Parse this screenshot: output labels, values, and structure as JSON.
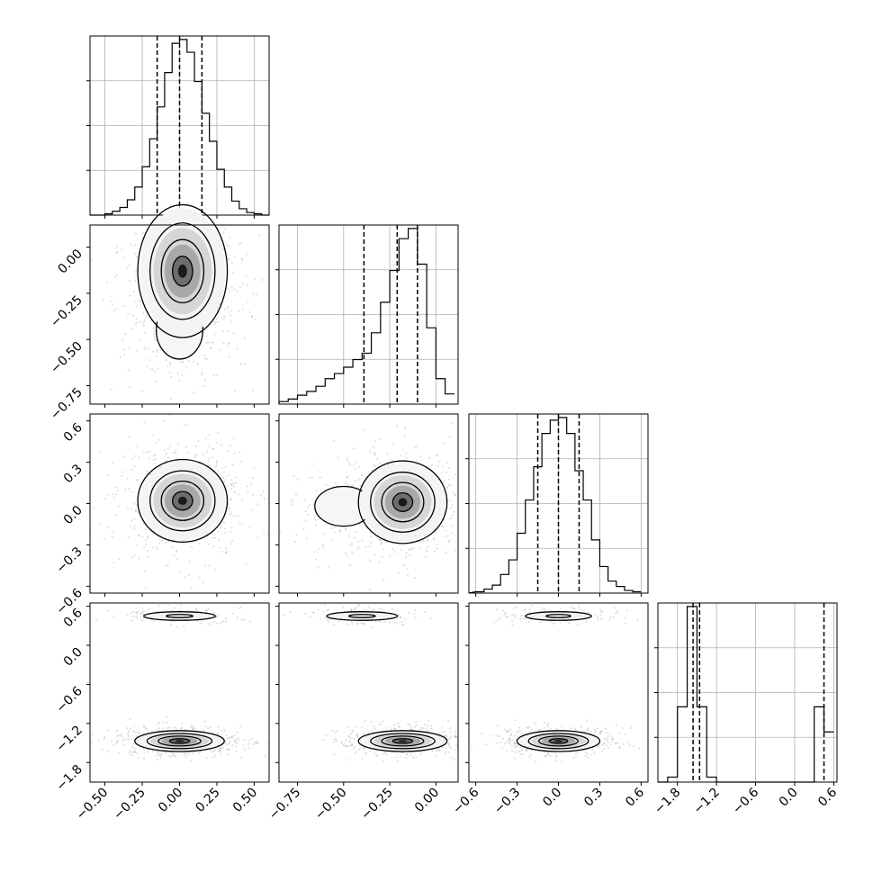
{
  "chart_data": {
    "type": "corner",
    "grid": true,
    "colors": {
      "line": "#000000",
      "grid": "#b0b0b0",
      "points": "#9a9a9a",
      "background": "#ffffff"
    },
    "parameters": [
      {
        "range": [
          -0.6,
          0.6
        ],
        "ticks": [
          -0.5,
          -0.25,
          0.0,
          0.25,
          0.5
        ],
        "tick_labels": [
          "−0.50",
          "−0.25",
          "0.00",
          "0.25",
          "0.50"
        ]
      },
      {
        "range": [
          -0.85,
          0.12
        ],
        "ticks": [
          -0.75,
          -0.5,
          -0.25,
          0.0
        ],
        "tick_labels": [
          "−0.75",
          "−0.50",
          "−0.25",
          "0.00"
        ]
      },
      {
        "range": [
          -0.65,
          0.65
        ],
        "ticks": [
          -0.6,
          -0.3,
          0.0,
          0.3,
          0.6
        ],
        "tick_labels": [
          "−0.6",
          "−0.3",
          "0.0",
          "0.3",
          "0.6"
        ]
      },
      {
        "range": [
          -2.1,
          0.65
        ],
        "ticks": [
          -1.8,
          -1.2,
          -0.6,
          0.0,
          0.6
        ],
        "tick_labels": [
          "−1.8",
          "−1.2",
          "−0.6",
          "0.0",
          "0.6"
        ]
      }
    ],
    "histograms": [
      {
        "param": 0,
        "bin_edges": [
          -0.6,
          -0.55,
          -0.5,
          -0.45,
          -0.4,
          -0.35,
          -0.3,
          -0.25,
          -0.2,
          -0.15,
          -0.1,
          -0.05,
          0.0,
          0.05,
          0.1,
          0.15,
          0.2,
          0.25,
          0.3,
          0.35,
          0.4,
          0.45,
          0.5,
          0.55,
          0.6
        ],
        "counts": [
          0,
          0,
          1,
          3,
          6,
          12,
          22,
          38,
          60,
          85,
          112,
          135,
          138,
          128,
          105,
          80,
          58,
          36,
          22,
          11,
          5,
          2,
          1,
          0
        ],
        "quantiles": [
          -0.15,
          0.0,
          0.15
        ]
      },
      {
        "param": 1,
        "bin_edges": [
          -0.85,
          -0.8,
          -0.75,
          -0.7,
          -0.65,
          -0.6,
          -0.55,
          -0.5,
          -0.45,
          -0.4,
          -0.35,
          -0.3,
          -0.25,
          -0.2,
          -0.15,
          -0.1,
          -0.05,
          0.0,
          0.05,
          0.1
        ],
        "counts": [
          2,
          4,
          7,
          10,
          14,
          20,
          24,
          29,
          35,
          40,
          56,
          80,
          105,
          130,
          138,
          110,
          60,
          20,
          8
        ],
        "quantiles": [
          -0.39,
          -0.21,
          -0.1
        ]
      },
      {
        "param": 2,
        "bin_edges": [
          -0.6,
          -0.54,
          -0.48,
          -0.42,
          -0.36,
          -0.3,
          -0.24,
          -0.18,
          -0.12,
          -0.06,
          0.0,
          0.06,
          0.12,
          0.18,
          0.24,
          0.3,
          0.36,
          0.42,
          0.48,
          0.54,
          0.6
        ],
        "counts": [
          1,
          3,
          6,
          14,
          25,
          45,
          70,
          95,
          120,
          130,
          132,
          120,
          92,
          70,
          40,
          20,
          9,
          5,
          2,
          1
        ],
        "quantiles": [
          -0.15,
          0.0,
          0.15
        ]
      },
      {
        "param": 3,
        "bin_edges": [
          -2.1,
          -1.95,
          -1.8,
          -1.65,
          -1.5,
          -1.35,
          -1.2,
          -1.05,
          -0.9,
          -0.75,
          -0.6,
          -0.45,
          -0.3,
          -0.15,
          0.0,
          0.15,
          0.3,
          0.45,
          0.6
        ],
        "counts": [
          0,
          4,
          60,
          140,
          60,
          4,
          0,
          0,
          0,
          0,
          0,
          0,
          0,
          0,
          0,
          0,
          60,
          40
        ],
        "quantiles": [
          -1.56,
          -1.46,
          0.45
        ]
      }
    ],
    "pairs": [
      {
        "x_param": 0,
        "y_param": 1,
        "mode_x": 0.02,
        "mode_y": -0.13,
        "sx": 0.15,
        "sy": 0.18,
        "tail": {
          "x": 0.0,
          "y": -0.45,
          "sx": 0.13,
          "sy": 0.13,
          "weight": 0.25
        }
      },
      {
        "x_param": 0,
        "y_param": 2,
        "mode_x": 0.02,
        "mode_y": 0.02,
        "sx": 0.15,
        "sy": 0.15
      },
      {
        "x_param": 1,
        "y_param": 2,
        "mode_x": -0.18,
        "mode_y": 0.01,
        "sx": 0.12,
        "sy": 0.15,
        "tail": {
          "x": -0.5,
          "y": -0.02,
          "sx": 0.13,
          "sy": 0.12,
          "weight": 0.25
        }
      },
      {
        "x_param": 0,
        "y_param": 3,
        "mode_x": 0.0,
        "mode_y": -1.47,
        "sx": 0.15,
        "sy": 0.08,
        "second_mode_y": 0.45,
        "second_weight": 0.2
      },
      {
        "x_param": 1,
        "y_param": 3,
        "mode_x": -0.18,
        "mode_y": -1.47,
        "sx": 0.12,
        "sy": 0.08,
        "second_mode_y": 0.45,
        "second_weight": 0.2,
        "second_mode_x": -0.4
      },
      {
        "x_param": 2,
        "y_param": 3,
        "mode_x": 0.0,
        "mode_y": -1.47,
        "sx": 0.15,
        "sy": 0.08,
        "second_mode_y": 0.45,
        "second_weight": 0.2
      }
    ]
  }
}
